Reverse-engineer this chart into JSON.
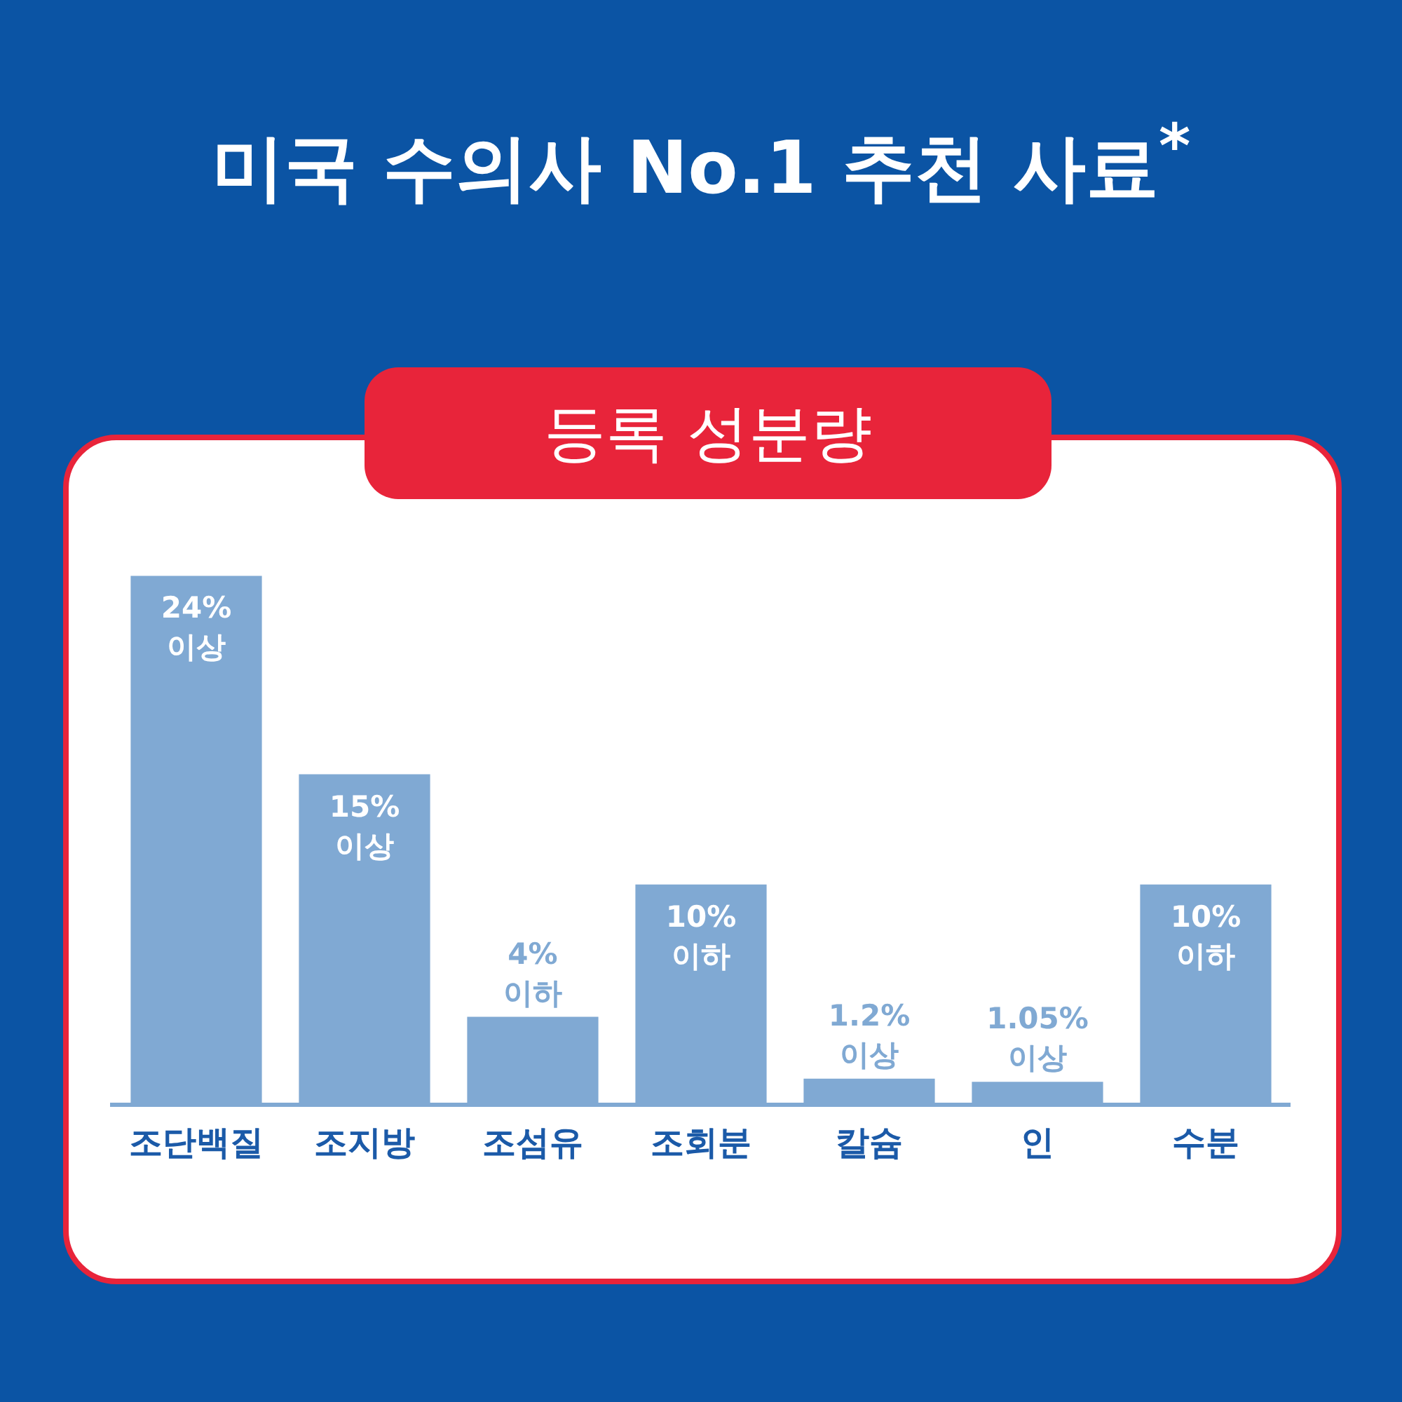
{
  "chart_data": {
    "type": "bar",
    "title": "미국 수의사 No.1 추천 사료$^{*}$",
    "subtitle": "등록 성분량",
    "categories": [
      "조단백질",
      "조지방",
      "조섬유",
      "조회분",
      "칼슘",
      "인",
      "수분"
    ],
    "values": [
      24,
      15,
      4,
      10,
      1.2,
      1.05,
      10
    ],
    "value_labels": [
      "24% 이상",
      "15% 이상",
      "4% 이하",
      "10% 이하",
      "1.2% 이상",
      "1.05% 이상",
      "10% 이하"
    ],
    "color": "#80a9d3",
    "grid": false,
    "legend": false
  }
}
